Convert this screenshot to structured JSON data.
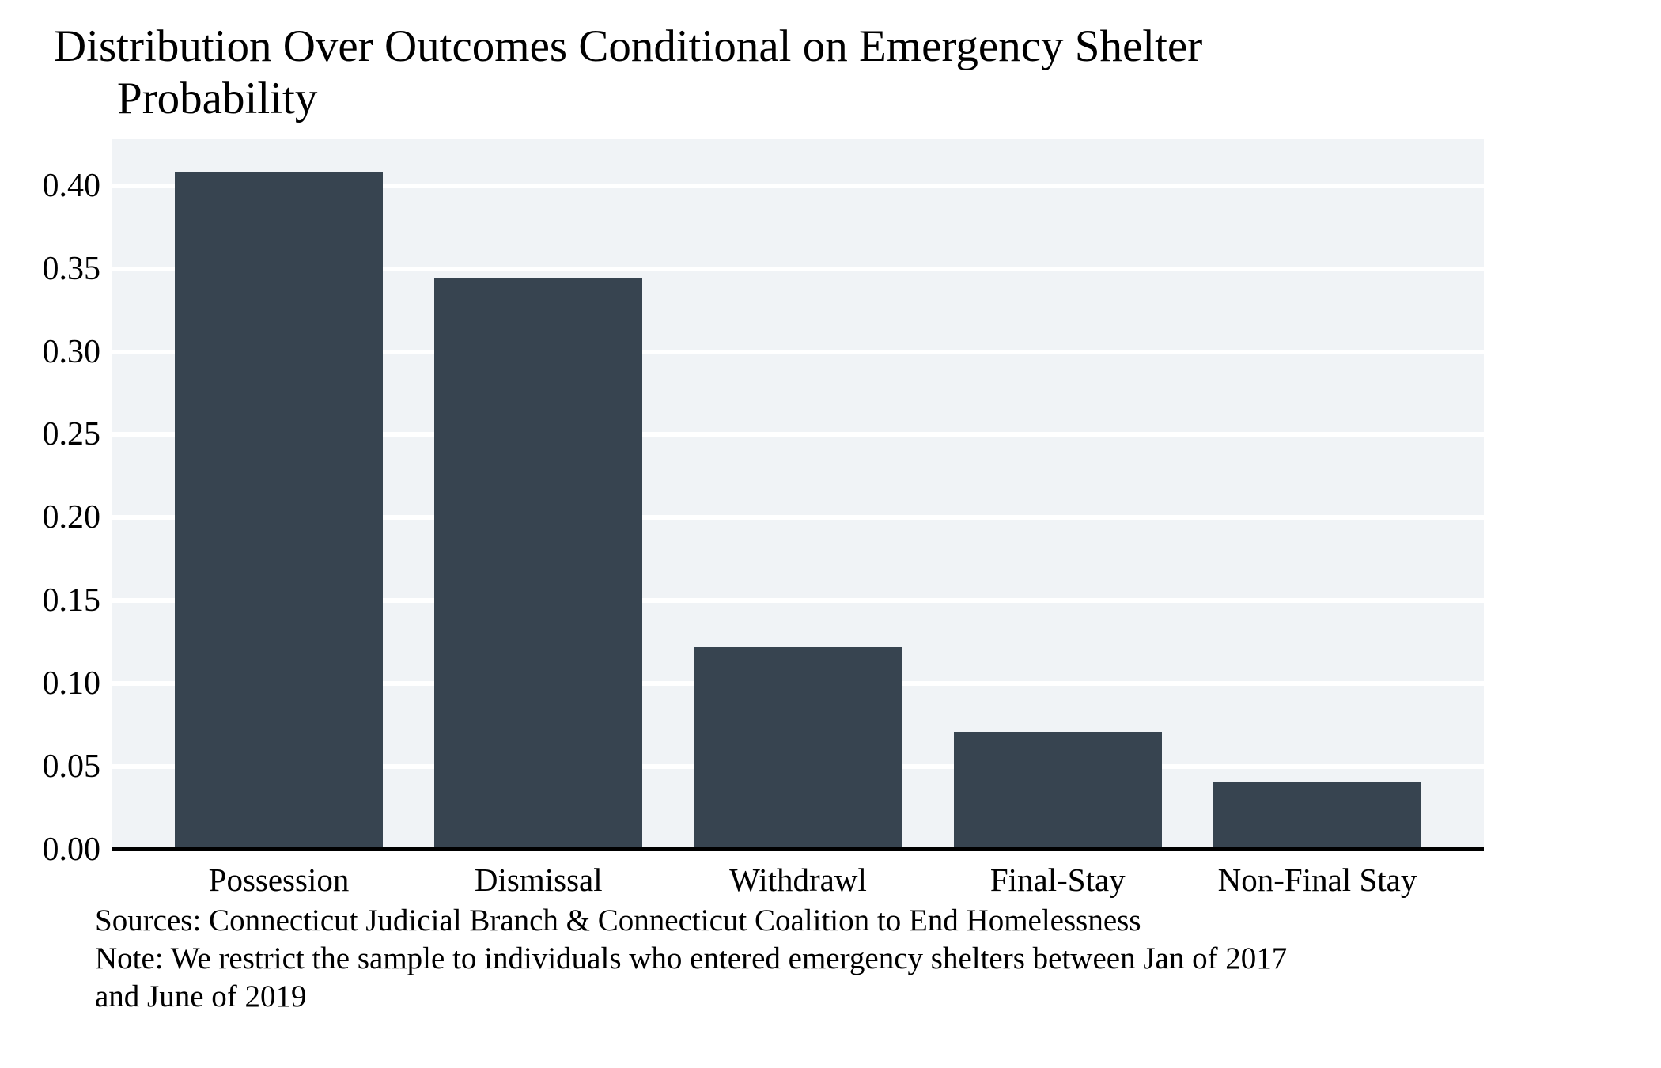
{
  "chart_data": {
    "type": "bar",
    "title_line1": "Distribution Over Outcomes Conditional on Emergency Shelter",
    "title_line2": "Probability",
    "categories": [
      "Possession",
      "Dismissal",
      "Withdrawl",
      "Final-Stay",
      "Non-Final Stay"
    ],
    "values": [
      0.408,
      0.344,
      0.122,
      0.071,
      0.041
    ],
    "yticks": [
      0.0,
      0.05,
      0.1,
      0.15,
      0.2,
      0.25,
      0.3,
      0.35,
      0.4
    ],
    "ylim": [
      0,
      0.428
    ],
    "xlabel": "",
    "ylabel": "",
    "grid": true,
    "legend": false,
    "colors": {
      "bar": "#374450",
      "plot_background": "#F0F3F6",
      "gridline": "#FFFFFF",
      "axis": "#000000",
      "text": "#000000"
    },
    "sources": "Sources: Connecticut Judicial Branch & Connecticut Coalition to End Homelessness",
    "note_line1": "Note: We restrict the sample to individuals who entered emergency shelters between Jan of 2017",
    "note_line2": "and June of 2019"
  }
}
